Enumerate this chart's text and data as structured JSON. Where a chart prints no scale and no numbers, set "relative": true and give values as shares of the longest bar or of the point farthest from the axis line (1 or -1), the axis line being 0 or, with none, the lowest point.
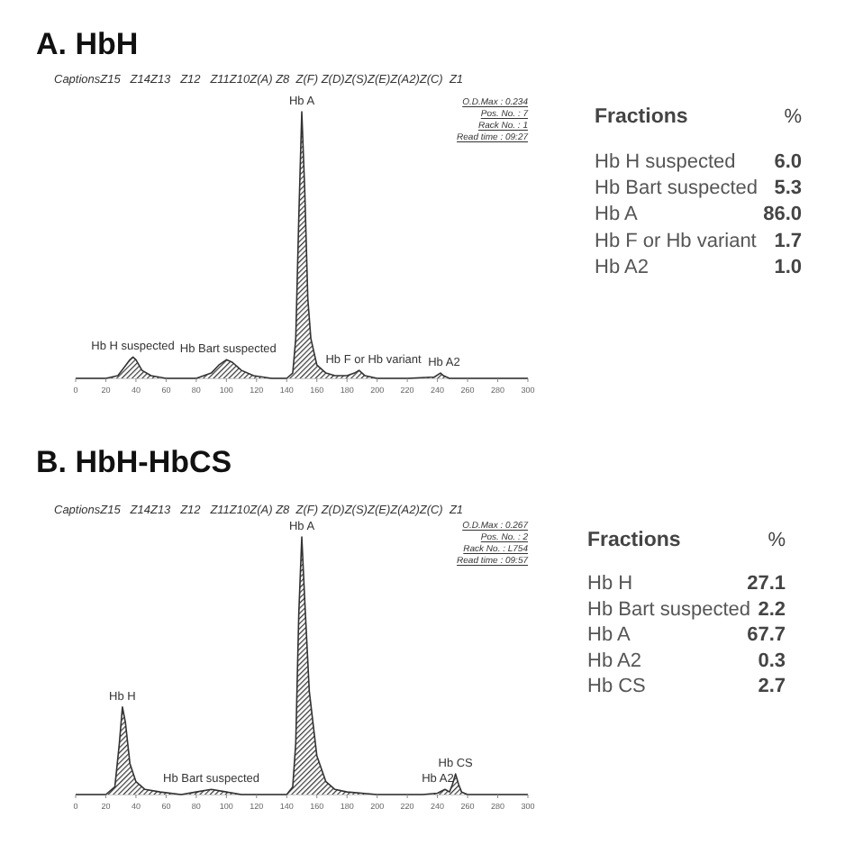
{
  "chart_data": [
    {
      "type": "area",
      "title": "A. HbH",
      "relative": true,
      "xlim": [
        0,
        300
      ],
      "xticks": [
        0,
        20,
        40,
        60,
        80,
        100,
        120,
        140,
        160,
        180,
        200,
        220,
        240,
        260,
        280,
        300
      ],
      "x": [
        0,
        10,
        20,
        28,
        32,
        36,
        38,
        40,
        44,
        50,
        60,
        80,
        90,
        95,
        100,
        104,
        110,
        118,
        130,
        140,
        144,
        146,
        148,
        150,
        152,
        154,
        156,
        160,
        166,
        172,
        180,
        185,
        188,
        192,
        200,
        220,
        238,
        242,
        244,
        248,
        260,
        280,
        300
      ],
      "series": [
        {
          "color": "#333333",
          "values": [
            0,
            0,
            0,
            0.01,
            0.04,
            0.07,
            0.08,
            0.07,
            0.03,
            0.01,
            0,
            0,
            0.02,
            0.05,
            0.07,
            0.06,
            0.03,
            0.01,
            0,
            0,
            0.02,
            0.15,
            0.6,
            1,
            0.7,
            0.3,
            0.15,
            0.05,
            0.02,
            0.01,
            0.01,
            0.02,
            0.03,
            0.01,
            0,
            0,
            0.005,
            0.02,
            0.01,
            0,
            0,
            0,
            0
          ]
        }
      ],
      "annotations": [
        "CaptionsZ15   Z14Z13   Z12   Z11Z10Z(A) Z8  Z(F) Z(D)Z(S)Z(E)Z(A2)Z(C)  Z1",
        "O.D.Max : 0.234",
        "Pos. No. : 7",
        "Rack No. : 1",
        "Read time : 09:27",
        {
          "text": "Hb H suspected",
          "x": 38,
          "y": 0.08
        },
        {
          "text": "Hb Bart suspected",
          "x": 100,
          "y": 0.07
        },
        {
          "text": "Hb A",
          "x": 150,
          "y": 1
        },
        {
          "text": "Hb F or Hb variant",
          "x": 188,
          "y": 0.03
        },
        {
          "text": "Hb A2",
          "x": 242,
          "y": 0.02
        }
      ]
    },
    {
      "type": "other",
      "xlabel": "Fractions",
      "ylabel": "%",
      "categories": [
        "Hb H suspected",
        "Hb Bart suspected",
        "Hb A",
        "Hb F or Hb variant",
        "Hb A2"
      ],
      "values": [
        6.0,
        5.3,
        86.0,
        1.7,
        1.0
      ],
      "value_labels": [
        "6.0",
        "5.3",
        "86.0",
        "1.7",
        "1.0"
      ]
    },
    {
      "type": "area",
      "title": "B. HbH-HbCS",
      "relative": true,
      "xlim": [
        0,
        300
      ],
      "xticks": [
        0,
        20,
        40,
        60,
        80,
        100,
        120,
        140,
        160,
        180,
        200,
        220,
        240,
        260,
        280,
        300
      ],
      "x": [
        0,
        10,
        20,
        26,
        29,
        31,
        33,
        36,
        40,
        46,
        56,
        70,
        80,
        90,
        100,
        110,
        130,
        140,
        144,
        146,
        148,
        150,
        152,
        155,
        160,
        166,
        172,
        180,
        200,
        230,
        240,
        245,
        248,
        250,
        252,
        254,
        256,
        260,
        280,
        300
      ],
      "series": [
        {
          "color": "#333333",
          "values": [
            0,
            0,
            0,
            0.03,
            0.2,
            0.34,
            0.28,
            0.12,
            0.05,
            0.02,
            0.01,
            0,
            0.01,
            0.02,
            0.01,
            0,
            0,
            0,
            0.03,
            0.2,
            0.7,
            1,
            0.75,
            0.4,
            0.15,
            0.05,
            0.02,
            0.01,
            0,
            0,
            0.005,
            0.02,
            0.01,
            0.04,
            0.08,
            0.04,
            0.01,
            0,
            0,
            0
          ]
        }
      ],
      "annotations": [
        "CaptionsZ15   Z14Z13   Z12   Z11Z10Z(A) Z8  Z(F) Z(D)Z(S)Z(E)Z(A2)Z(C)  Z1",
        "O.D.Max : 0.267",
        "Pos. No. : 2",
        "Rack No. : L754",
        "Read time : 09:57",
        {
          "text": "Hb H",
          "x": 31,
          "y": 0.34
        },
        {
          "text": "Hb Bart suspected",
          "x": 90,
          "y": 0.02
        },
        {
          "text": "Hb A",
          "x": 150,
          "y": 1
        },
        {
          "text": "Hb A2",
          "x": 245,
          "y": 0.02
        },
        {
          "text": "Hb CS",
          "x": 252,
          "y": 0.08
        }
      ]
    },
    {
      "type": "other",
      "xlabel": "Fractions",
      "ylabel": "%",
      "categories": [
        "Hb H",
        "Hb Bart suspected",
        "Hb A",
        "Hb A2",
        "Hb CS"
      ],
      "values": [
        27.1,
        2.2,
        67.7,
        0.3,
        2.7
      ],
      "value_labels": [
        "27.1",
        "2.2",
        "67.7",
        "0.3",
        "2.7"
      ]
    }
  ]
}
